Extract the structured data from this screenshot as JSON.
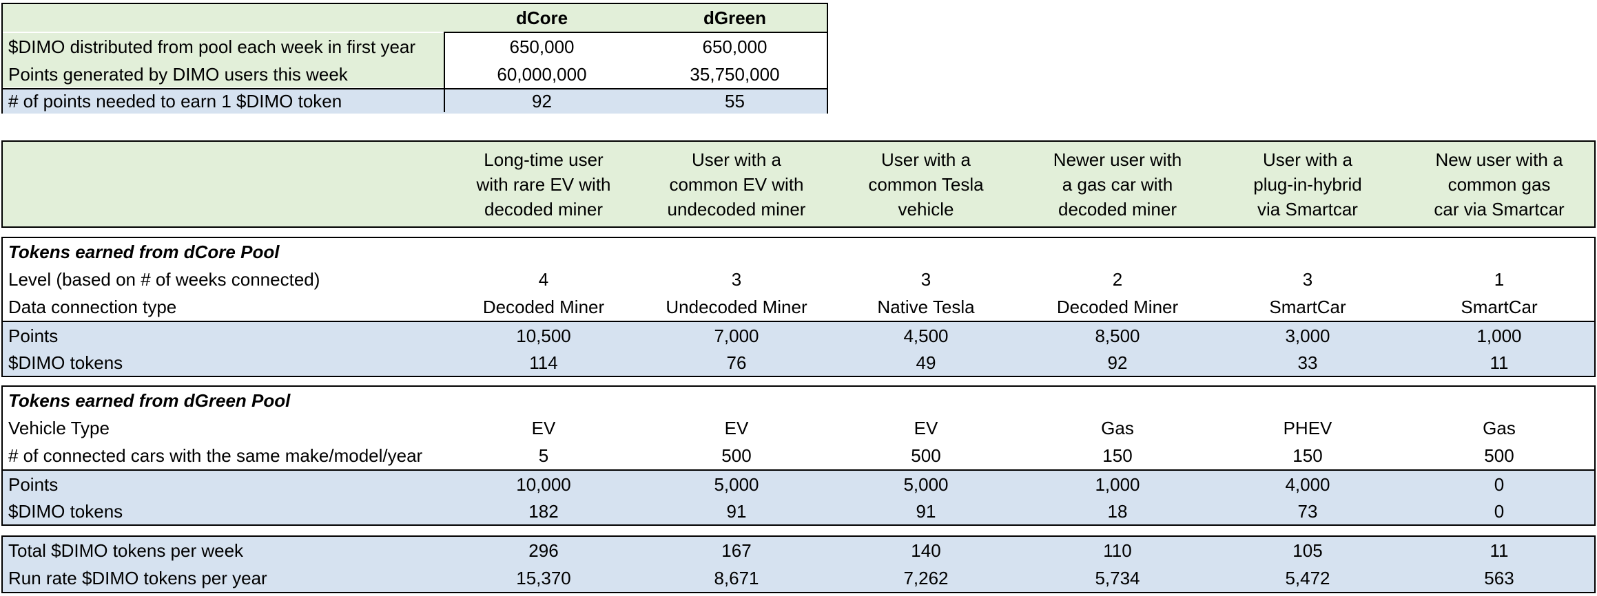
{
  "pool_table": {
    "headers": [
      "dCore",
      "dGreen"
    ],
    "rows": [
      {
        "label": "$DIMO distributed from pool each week in first year",
        "values": [
          "650,000",
          "650,000"
        ]
      },
      {
        "label": "Points generated by DIMO users this week",
        "values": [
          "60,000,000",
          "35,750,000"
        ]
      },
      {
        "label": "# of points needed to earn 1 $DIMO token",
        "values": [
          "92",
          "55"
        ]
      }
    ]
  },
  "users": [
    {
      "line1": "Long-time user",
      "line2": "with rare EV with",
      "line3": "decoded miner"
    },
    {
      "line1": "User with a",
      "line2": "common EV with",
      "line3": "undecoded miner"
    },
    {
      "line1": "User with a",
      "line2": "common Tesla",
      "line3": "vehicle"
    },
    {
      "line1": "Newer user with",
      "line2": "a gas car with",
      "line3": "decoded miner"
    },
    {
      "line1": "User with a",
      "line2": "plug-in-hybrid",
      "line3": "via Smartcar"
    },
    {
      "line1": "New user with a",
      "line2": "common gas",
      "line3": "car via Smartcar"
    }
  ],
  "dcore": {
    "title": "Tokens earned from dCore Pool",
    "level": {
      "label": "Level (based on # of weeks connected)",
      "values": [
        "4",
        "3",
        "3",
        "2",
        "3",
        "1"
      ]
    },
    "connection": {
      "label": "Data connection type",
      "values": [
        "Decoded Miner",
        "Undecoded Miner",
        "Native Tesla",
        "Decoded Miner",
        "SmartCar",
        "SmartCar"
      ]
    },
    "points": {
      "label": "Points",
      "values": [
        "10,500",
        "7,000",
        "4,500",
        "8,500",
        "3,000",
        "1,000"
      ]
    },
    "tokens": {
      "label": "$DIMO tokens",
      "values": [
        "114",
        "76",
        "49",
        "92",
        "33",
        "11"
      ]
    }
  },
  "dgreen": {
    "title": "Tokens earned from dGreen Pool",
    "vehicle": {
      "label": "Vehicle Type",
      "values": [
        "EV",
        "EV",
        "EV",
        "Gas",
        "PHEV",
        "Gas"
      ]
    },
    "connected": {
      "label": "# of connected cars with the same make/model/year",
      "values": [
        "5",
        "500",
        "500",
        "150",
        "150",
        "500"
      ]
    },
    "points": {
      "label": "Points",
      "values": [
        "10,000",
        "5,000",
        "5,000",
        "1,000",
        "4,000",
        "0"
      ]
    },
    "tokens": {
      "label": "$DIMO tokens",
      "values": [
        "182",
        "91",
        "91",
        "18",
        "73",
        "0"
      ]
    }
  },
  "totals": {
    "weekly": {
      "label": "Total $DIMO tokens per week",
      "values": [
        "296",
        "167",
        "140",
        "110",
        "105",
        "11"
      ]
    },
    "yearly": {
      "label": "Run rate $DIMO tokens per year",
      "values": [
        "15,370",
        "8,671",
        "7,262",
        "5,734",
        "5,472",
        "563"
      ]
    }
  }
}
